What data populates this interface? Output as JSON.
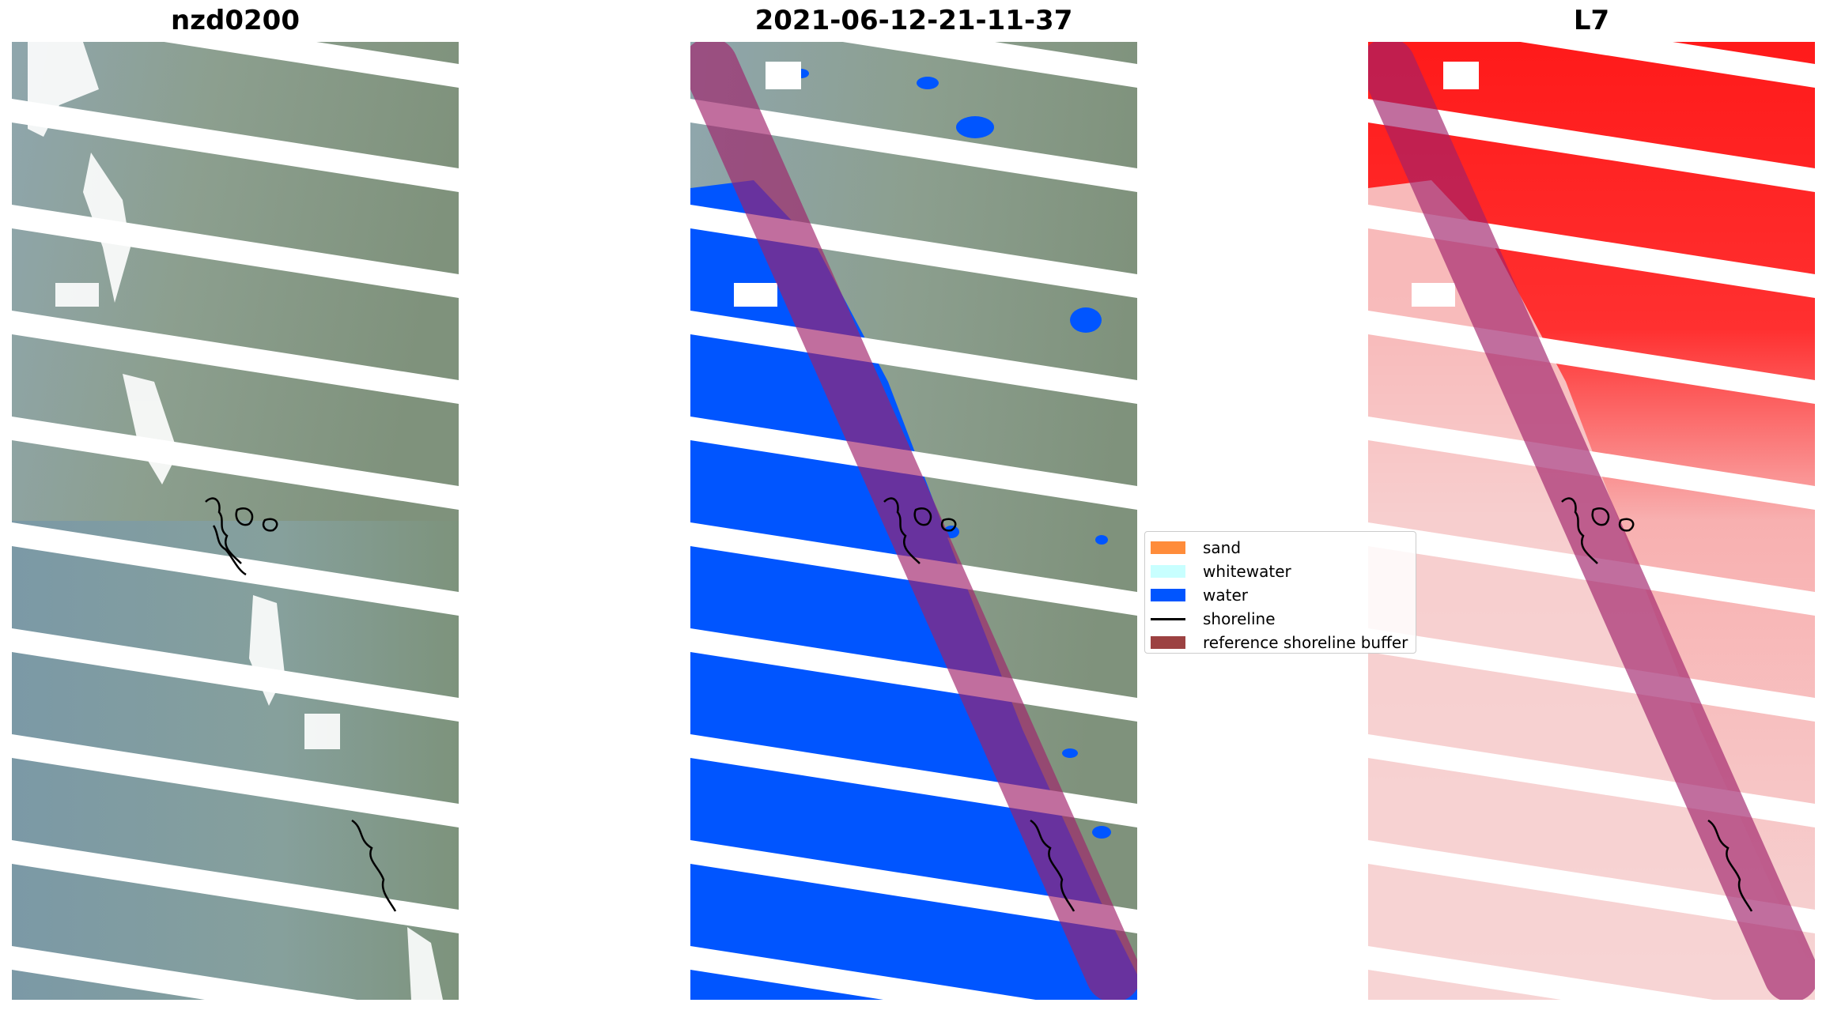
{
  "panels": {
    "left_title": "nzd0200",
    "middle_title": "2021-06-12-21-11-37",
    "right_title": "L7"
  },
  "legend": {
    "items": [
      {
        "label": "sand",
        "color": "#ff8c3a",
        "kind": "patch"
      },
      {
        "label": "whitewater",
        "color": "#c8ffff",
        "kind": "patch"
      },
      {
        "label": "water",
        "color": "#0055ff",
        "kind": "patch"
      },
      {
        "label": "shoreline",
        "color": "#000000",
        "kind": "line"
      },
      {
        "label": "reference shoreline buffer",
        "color": "#8b2020",
        "kind": "patch"
      }
    ]
  },
  "colors": {
    "rgb_land": "#8a9a88",
    "rgb_sea": "#7f99a3",
    "water_class": "#0055ff",
    "buffer_overlay": "#a0206a",
    "index_high": "#ff1a1a",
    "index_low": "#f6cfcf"
  }
}
